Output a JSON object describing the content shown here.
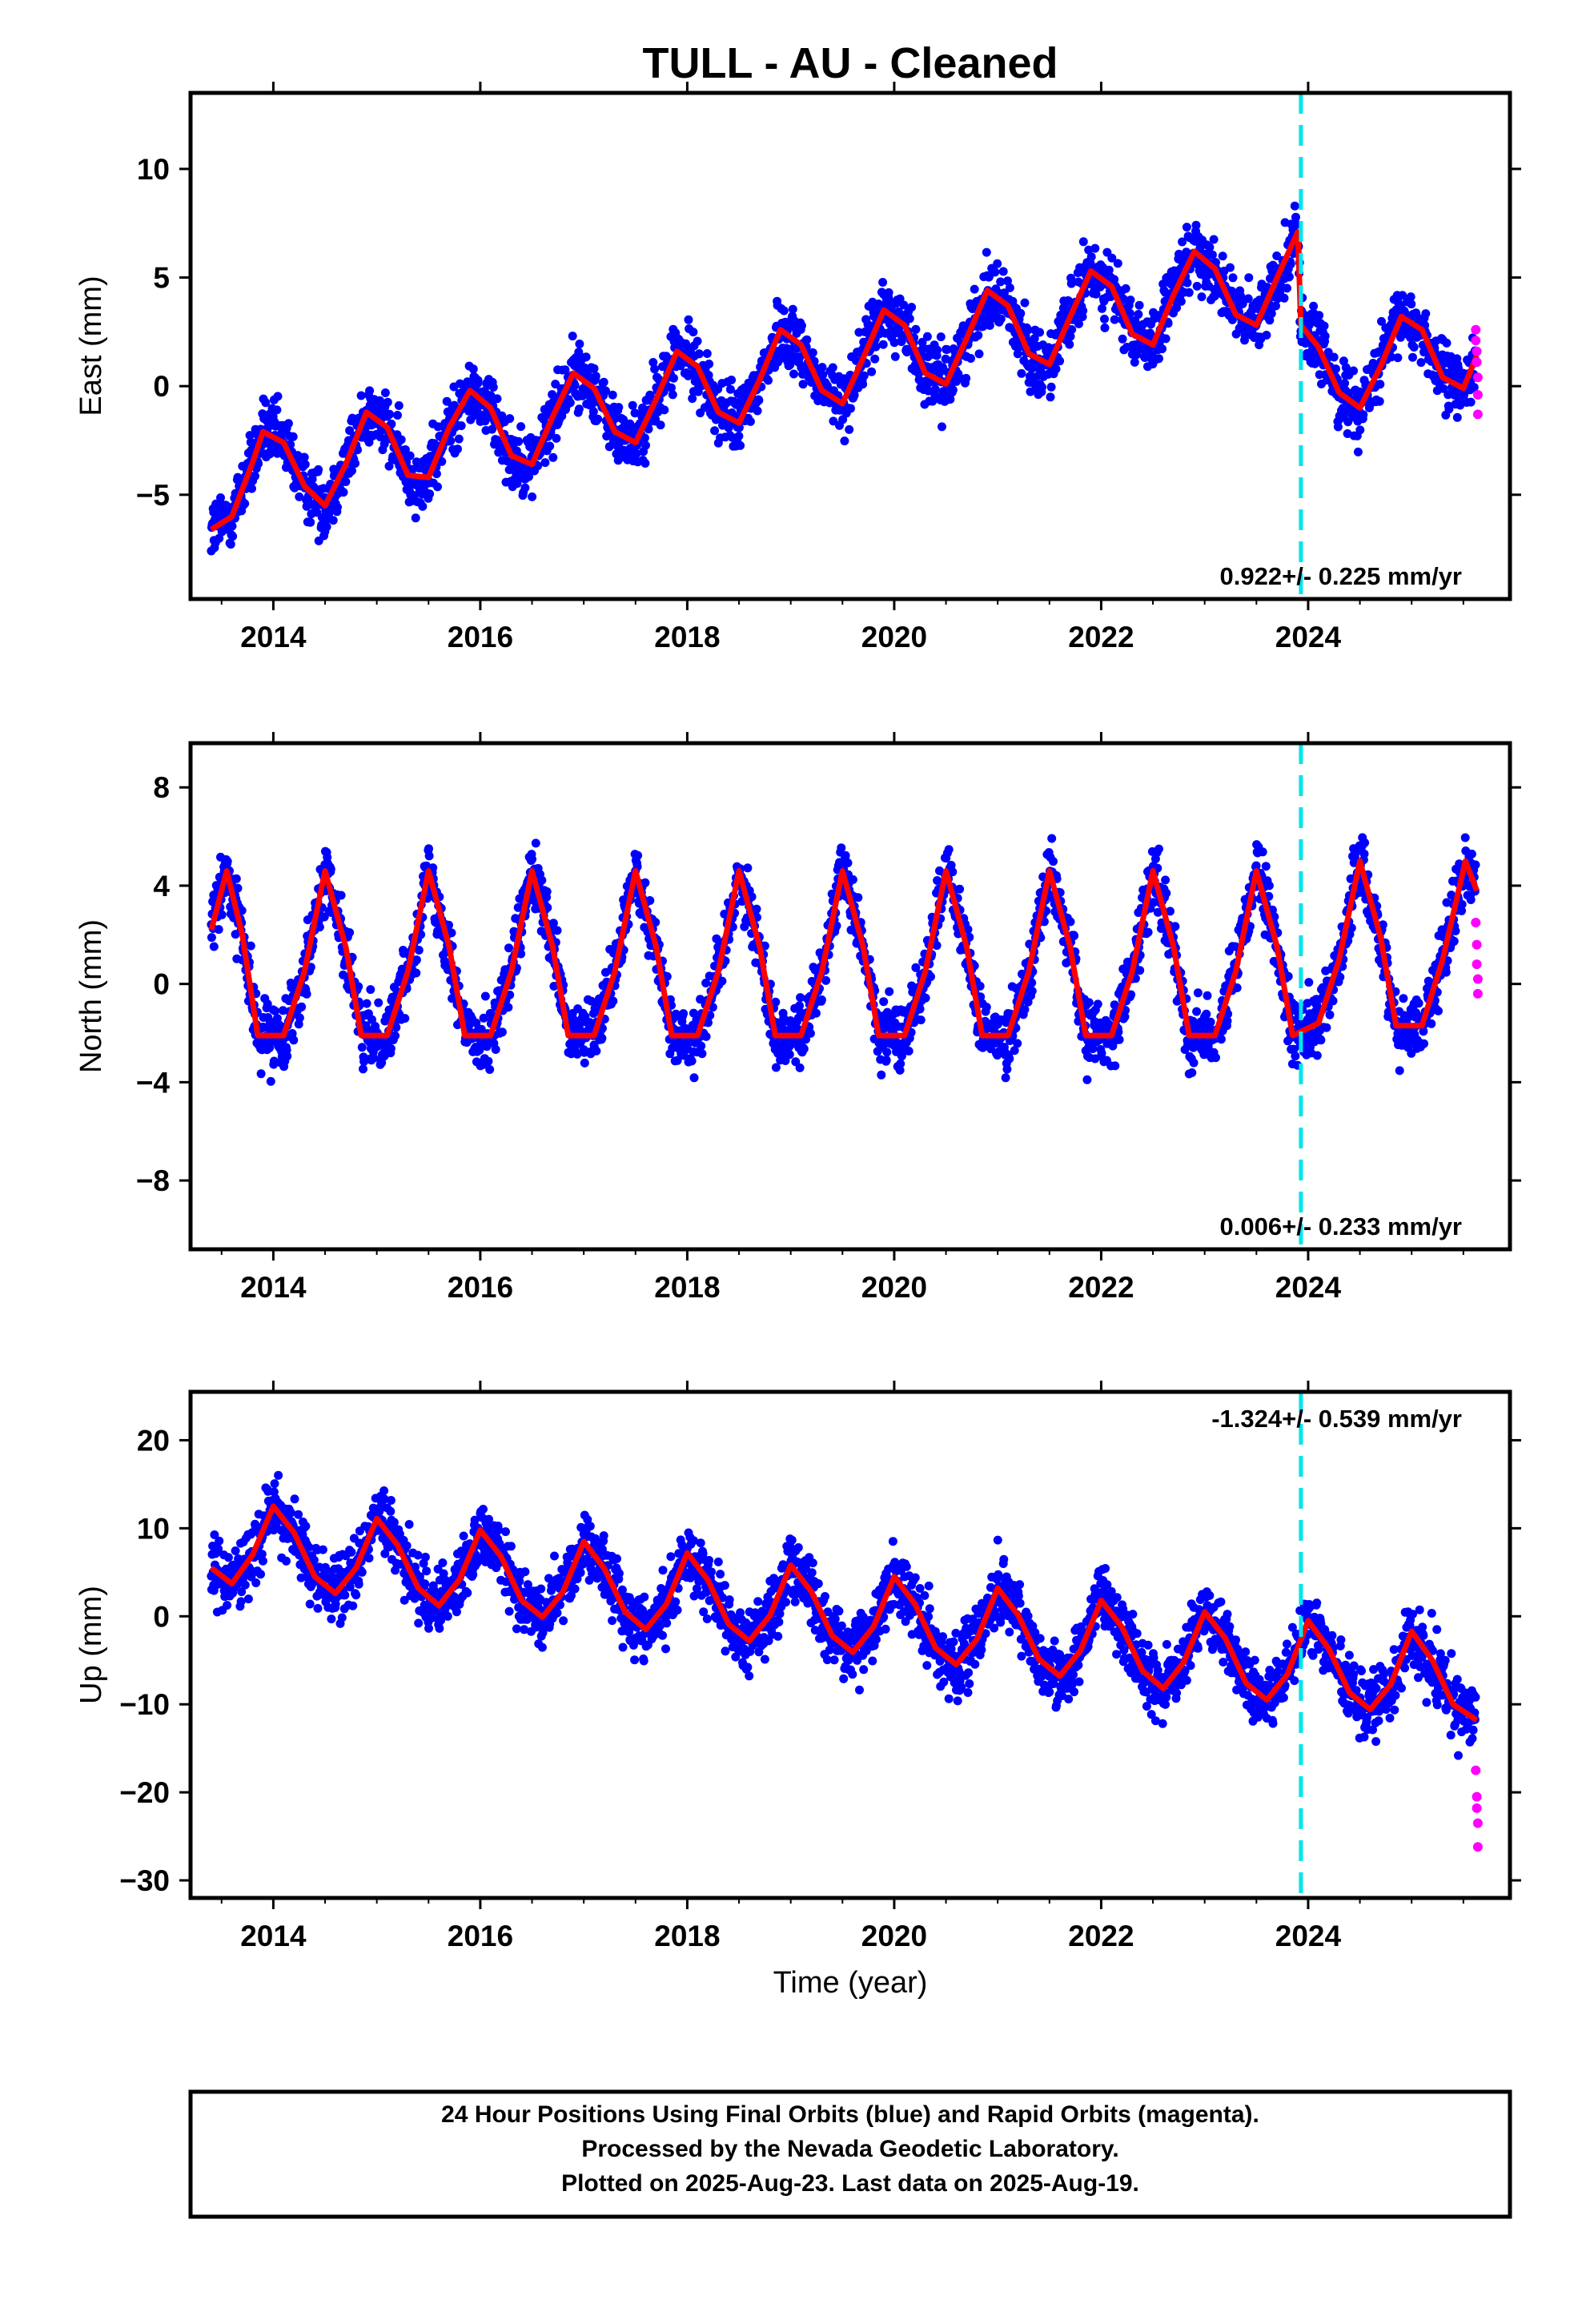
{
  "title": "TULL  - AU - Cleaned",
  "xlabel": "Time (year)",
  "footer": {
    "lines": [
      "24 Hour Positions Using Final Orbits (blue) and Rapid Orbits (magenta).",
      "Processed by the Nevada Geodetic Laboratory.",
      "Plotted on 2025-Aug-23. Last data on 2025-Aug-19."
    ]
  },
  "colors": {
    "final_orbits": "#0000ff",
    "rapid_orbits": "#ff00ff",
    "model": "#ff0000",
    "equipment_change": "#00e5ee"
  },
  "chart_data": [
    {
      "type": "scatter",
      "component": "east",
      "ylabel": "East (mm)",
      "xlim": [
        2013.2,
        2025.95
      ],
      "ylim": [
        -9.8,
        13.5
      ],
      "xticks": [
        2014,
        2016,
        2018,
        2020,
        2022,
        2024
      ],
      "yticks": [
        -5,
        0,
        5,
        10
      ],
      "rate_label": "0.922+/- 0.225 mm/yr",
      "rate_position": "bottom-right",
      "equipment_change_year": 2023.93,
      "model_samples": [
        [
          2013.4,
          -6.6
        ],
        [
          2013.6,
          -6.0
        ],
        [
          2013.8,
          -3.5
        ],
        [
          2013.9,
          -2.1
        ],
        [
          2014.1,
          -2.6
        ],
        [
          2014.3,
          -4.6
        ],
        [
          2014.5,
          -5.5
        ],
        [
          2014.7,
          -3.6
        ],
        [
          2014.9,
          -1.2
        ],
        [
          2015.1,
          -1.9
        ],
        [
          2015.3,
          -4.1
        ],
        [
          2015.5,
          -4.2
        ],
        [
          2015.7,
          -1.9
        ],
        [
          2015.9,
          -0.2
        ],
        [
          2016.1,
          -1.0
        ],
        [
          2016.3,
          -3.2
        ],
        [
          2016.5,
          -3.6
        ],
        [
          2016.7,
          -1.4
        ],
        [
          2016.9,
          0.6
        ],
        [
          2017.1,
          -0.1
        ],
        [
          2017.3,
          -2.1
        ],
        [
          2017.5,
          -2.6
        ],
        [
          2017.7,
          -0.6
        ],
        [
          2017.9,
          1.6
        ],
        [
          2018.1,
          0.9
        ],
        [
          2018.3,
          -1.2
        ],
        [
          2018.5,
          -1.7
        ],
        [
          2018.7,
          0.3
        ],
        [
          2018.9,
          2.6
        ],
        [
          2019.1,
          1.9
        ],
        [
          2019.3,
          -0.2
        ],
        [
          2019.5,
          -0.8
        ],
        [
          2019.7,
          1.3
        ],
        [
          2019.9,
          3.5
        ],
        [
          2020.1,
          2.8
        ],
        [
          2020.3,
          0.6
        ],
        [
          2020.5,
          0.1
        ],
        [
          2020.7,
          2.2
        ],
        [
          2020.9,
          4.4
        ],
        [
          2021.1,
          3.7
        ],
        [
          2021.3,
          1.5
        ],
        [
          2021.5,
          1.0
        ],
        [
          2021.7,
          3.2
        ],
        [
          2021.9,
          5.3
        ],
        [
          2022.1,
          4.6
        ],
        [
          2022.3,
          2.4
        ],
        [
          2022.5,
          1.9
        ],
        [
          2022.7,
          4.2
        ],
        [
          2022.9,
          6.2
        ],
        [
          2023.1,
          5.4
        ],
        [
          2023.3,
          3.3
        ],
        [
          2023.5,
          2.8
        ],
        [
          2023.7,
          5.0
        ],
        [
          2023.9,
          7.1
        ],
        [
          2023.93,
          2.8
        ],
        [
          2024.1,
          1.8
        ],
        [
          2024.3,
          -0.3
        ],
        [
          2024.5,
          -1.0
        ],
        [
          2024.7,
          0.9
        ],
        [
          2024.9,
          3.2
        ],
        [
          2025.1,
          2.6
        ],
        [
          2025.3,
          0.4
        ],
        [
          2025.5,
          -0.1
        ],
        [
          2025.63,
          1.4
        ]
      ],
      "rapid_points": [
        [
          2025.62,
          2.6
        ],
        [
          2025.62,
          2.1
        ],
        [
          2025.63,
          1.6
        ],
        [
          2025.63,
          1.1
        ],
        [
          2025.64,
          0.4
        ],
        [
          2025.64,
          -0.4
        ],
        [
          2025.64,
          -1.3
        ]
      ],
      "final_points_description": ""
    },
    {
      "type": "scatter",
      "component": "north",
      "ylabel": "North (mm)",
      "xlim": [
        2013.2,
        2025.95
      ],
      "ylim": [
        -10.8,
        9.8
      ],
      "xticks": [
        2014,
        2016,
        2018,
        2020,
        2022,
        2024
      ],
      "yticks": [
        -8,
        -4,
        0,
        4,
        8
      ],
      "rate_label": "0.006+/- 0.233 mm/yr",
      "rate_position": "bottom-right",
      "equipment_change_year": 2023.93,
      "model_samples": [
        [
          2013.4,
          2.2
        ],
        [
          2013.55,
          4.6
        ],
        [
          2013.7,
          2.0
        ],
        [
          2013.85,
          -2.1
        ],
        [
          2014.1,
          -2.1
        ],
        [
          2014.3,
          0.5
        ],
        [
          2014.5,
          4.6
        ],
        [
          2014.7,
          1.5
        ],
        [
          2014.85,
          -2.1
        ],
        [
          2015.1,
          -2.1
        ],
        [
          2015.3,
          0.5
        ],
        [
          2015.5,
          4.6
        ],
        [
          2015.7,
          1.5
        ],
        [
          2015.85,
          -2.1
        ],
        [
          2016.1,
          -2.1
        ],
        [
          2016.3,
          0.5
        ],
        [
          2016.5,
          4.6
        ],
        [
          2016.7,
          1.5
        ],
        [
          2016.85,
          -2.1
        ],
        [
          2017.1,
          -2.1
        ],
        [
          2017.3,
          0.5
        ],
        [
          2017.5,
          4.6
        ],
        [
          2017.7,
          1.5
        ],
        [
          2017.85,
          -2.1
        ],
        [
          2018.1,
          -2.1
        ],
        [
          2018.3,
          0.5
        ],
        [
          2018.5,
          4.6
        ],
        [
          2018.7,
          1.5
        ],
        [
          2018.85,
          -2.1
        ],
        [
          2019.1,
          -2.1
        ],
        [
          2019.3,
          0.5
        ],
        [
          2019.5,
          4.6
        ],
        [
          2019.7,
          1.5
        ],
        [
          2019.85,
          -2.1
        ],
        [
          2020.1,
          -2.1
        ],
        [
          2020.3,
          0.5
        ],
        [
          2020.5,
          4.6
        ],
        [
          2020.7,
          1.5
        ],
        [
          2020.85,
          -2.1
        ],
        [
          2021.1,
          -2.1
        ],
        [
          2021.3,
          0.5
        ],
        [
          2021.5,
          4.6
        ],
        [
          2021.7,
          1.5
        ],
        [
          2021.85,
          -2.1
        ],
        [
          2022.1,
          -2.1
        ],
        [
          2022.3,
          0.5
        ],
        [
          2022.5,
          4.6
        ],
        [
          2022.7,
          1.5
        ],
        [
          2022.85,
          -2.1
        ],
        [
          2023.1,
          -2.1
        ],
        [
          2023.3,
          0.5
        ],
        [
          2023.5,
          4.6
        ],
        [
          2023.7,
          1.5
        ],
        [
          2023.85,
          -2.1
        ],
        [
          2024.1,
          -1.6
        ],
        [
          2024.3,
          1.0
        ],
        [
          2024.5,
          5.0
        ],
        [
          2024.7,
          1.9
        ],
        [
          2024.85,
          -1.7
        ],
        [
          2025.1,
          -1.7
        ],
        [
          2025.3,
          1.0
        ],
        [
          2025.52,
          5.0
        ],
        [
          2025.63,
          3.8
        ]
      ],
      "rapid_points": [
        [
          2025.62,
          2.5
        ],
        [
          2025.63,
          1.6
        ],
        [
          2025.63,
          0.8
        ],
        [
          2025.64,
          0.2
        ],
        [
          2025.64,
          -0.4
        ]
      ],
      "final_points_description": ""
    },
    {
      "type": "scatter",
      "component": "up",
      "ylabel": "Up (mm)",
      "xlim": [
        2013.2,
        2025.95
      ],
      "ylim": [
        -32.0,
        25.5
      ],
      "xticks": [
        2014,
        2016,
        2018,
        2020,
        2022,
        2024
      ],
      "yticks": [
        -30,
        -20,
        -10,
        0,
        10,
        20
      ],
      "rate_label": "-1.324+/- 0.539 mm/yr",
      "rate_position": "top-right",
      "equipment_change_year": 2023.93,
      "model_samples": [
        [
          2013.4,
          5.5
        ],
        [
          2013.6,
          3.7
        ],
        [
          2013.8,
          7.0
        ],
        [
          2014.0,
          12.5
        ],
        [
          2014.2,
          9.5
        ],
        [
          2014.4,
          4.5
        ],
        [
          2014.6,
          2.6
        ],
        [
          2014.8,
          5.5
        ],
        [
          2015.0,
          11.1
        ],
        [
          2015.2,
          8.1
        ],
        [
          2015.4,
          3.2
        ],
        [
          2015.6,
          1.2
        ],
        [
          2015.8,
          4.2
        ],
        [
          2016.0,
          9.8
        ],
        [
          2016.2,
          6.8
        ],
        [
          2016.4,
          1.8
        ],
        [
          2016.6,
          -0.1
        ],
        [
          2016.8,
          2.8
        ],
        [
          2017.0,
          8.5
        ],
        [
          2017.2,
          5.4
        ],
        [
          2017.4,
          0.5
        ],
        [
          2017.6,
          -1.5
        ],
        [
          2017.8,
          1.4
        ],
        [
          2018.0,
          7.2
        ],
        [
          2018.2,
          4.1
        ],
        [
          2018.4,
          -0.9
        ],
        [
          2018.6,
          -2.8
        ],
        [
          2018.8,
          0.1
        ],
        [
          2019.0,
          5.8
        ],
        [
          2019.2,
          2.8
        ],
        [
          2019.4,
          -2.2
        ],
        [
          2019.6,
          -4.1
        ],
        [
          2019.8,
          -1.2
        ],
        [
          2020.0,
          4.5
        ],
        [
          2020.2,
          1.4
        ],
        [
          2020.4,
          -3.6
        ],
        [
          2020.6,
          -5.5
        ],
        [
          2020.8,
          -2.6
        ],
        [
          2021.0,
          3.2
        ],
        [
          2021.2,
          0.1
        ],
        [
          2021.4,
          -4.9
        ],
        [
          2021.6,
          -6.8
        ],
        [
          2021.8,
          -3.9
        ],
        [
          2022.0,
          1.8
        ],
        [
          2022.2,
          -1.2
        ],
        [
          2022.4,
          -6.2
        ],
        [
          2022.6,
          -8.2
        ],
        [
          2022.8,
          -5.2
        ],
        [
          2023.0,
          0.5
        ],
        [
          2023.2,
          -2.5
        ],
        [
          2023.4,
          -7.6
        ],
        [
          2023.6,
          -9.5
        ],
        [
          2023.8,
          -6.6
        ],
        [
          2024.0,
          -0.5
        ],
        [
          2024.2,
          -3.7
        ],
        [
          2024.4,
          -8.7
        ],
        [
          2024.6,
          -10.6
        ],
        [
          2024.8,
          -7.7
        ],
        [
          2025.0,
          -1.7
        ],
        [
          2025.2,
          -5.0
        ],
        [
          2025.4,
          -10.0
        ],
        [
          2025.63,
          -11.8
        ]
      ],
      "rapid_points": [
        [
          2025.62,
          -17.5
        ],
        [
          2025.63,
          -20.5
        ],
        [
          2025.63,
          -21.8
        ],
        [
          2025.64,
          -23.5
        ],
        [
          2025.64,
          -26.2
        ]
      ],
      "final_points_description": ""
    }
  ]
}
